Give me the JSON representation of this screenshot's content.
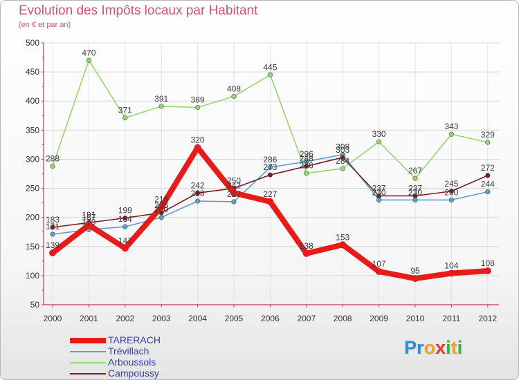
{
  "chart_data": {
    "type": "line",
    "title": "Evolution des Impôts locaux par Habitant",
    "subtitle": "(en € et par an)",
    "x": [
      "2000",
      "2001",
      "2002",
      "2003",
      "2004",
      "2005",
      "2006",
      "2007",
      "2008",
      "2009",
      "2010",
      "2011",
      "2012"
    ],
    "ylim": [
      50,
      500
    ],
    "yticks": [
      "50",
      "100",
      "150",
      "200",
      "250",
      "300",
      "350",
      "400",
      "450",
      "500"
    ],
    "grid": true,
    "series": [
      {
        "name": "Arboussols",
        "color": "#95d86a",
        "values": [
          288,
          470,
          371,
          391,
          389,
          408,
          445,
          276,
          284,
          330,
          267,
          343,
          329
        ]
      },
      {
        "name": "Trévillach",
        "color": "#5d9fd0",
        "values": [
          171,
          179,
          184,
          200,
          228,
          227,
          286,
          296,
          308,
          230,
          230,
          230,
          244
        ]
      },
      {
        "name": "Campoussy",
        "color": "#7a1c24",
        "values": [
          183,
          191,
          199,
          208,
          242,
          250,
          273,
          288,
          303,
          237,
          237,
          245,
          272
        ]
      },
      {
        "name": "TARERACH",
        "color": "#e81a1a",
        "values": [
          139,
          187,
          147,
          218,
          320,
          242,
          227,
          138,
          153,
          107,
          95,
          104,
          108
        ]
      }
    ],
    "legend_order": [
      "TARERACH",
      "Trévillach",
      "Arboussols",
      "Campoussy"
    ],
    "legend_position": "bottom-left"
  },
  "logo": {
    "text": "Proxiti",
    "letters": [
      "P",
      "r",
      "o",
      "x",
      "i",
      "t",
      "i"
    ],
    "colors": [
      "#2f8fd6",
      "#2f8fd6",
      "#f0a32a",
      "#e33b3b",
      "#37b34a",
      "#f0a32a",
      "#37b34a"
    ]
  }
}
